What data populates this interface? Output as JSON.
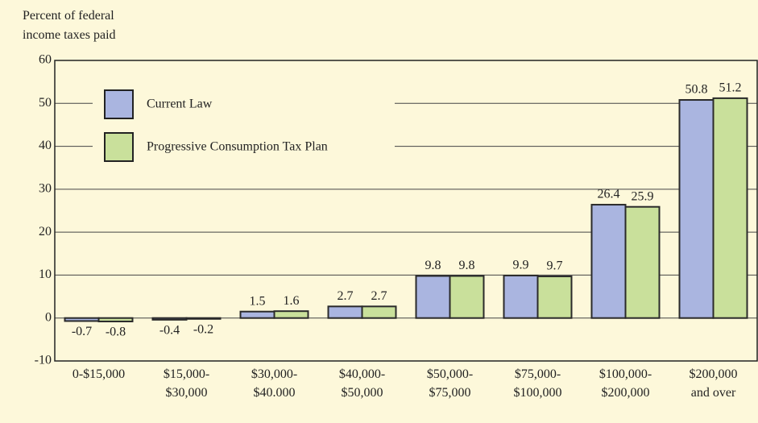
{
  "chart_data": {
    "type": "bar",
    "y_label": "Percent of federal\nincome taxes paid",
    "categories": [
      "0-$15,000",
      "$15,000-\n$30,000",
      "$30,000-\n$40.000",
      "$40,000-\n$50,000",
      "$50,000-\n$75,000",
      "$75,000-\n$100,000",
      "$100,000-\n$200,000",
      "$200,000\nand over"
    ],
    "series": [
      {
        "name": "Current Law",
        "color": "#aab5e0",
        "values": [
          -0.7,
          -0.4,
          1.5,
          2.7,
          9.8,
          9.9,
          26.4,
          50.8
        ]
      },
      {
        "name": "Progressive Consumption Tax Plan",
        "color": "#c9e09b",
        "values": [
          -0.8,
          -0.2,
          1.6,
          2.7,
          9.8,
          9.7,
          25.9,
          51.2
        ]
      }
    ],
    "ylim": [
      -10,
      60
    ],
    "yticks": [
      -10,
      0,
      10,
      20,
      30,
      40,
      50,
      60
    ],
    "grid": true,
    "legend": "upper left"
  }
}
